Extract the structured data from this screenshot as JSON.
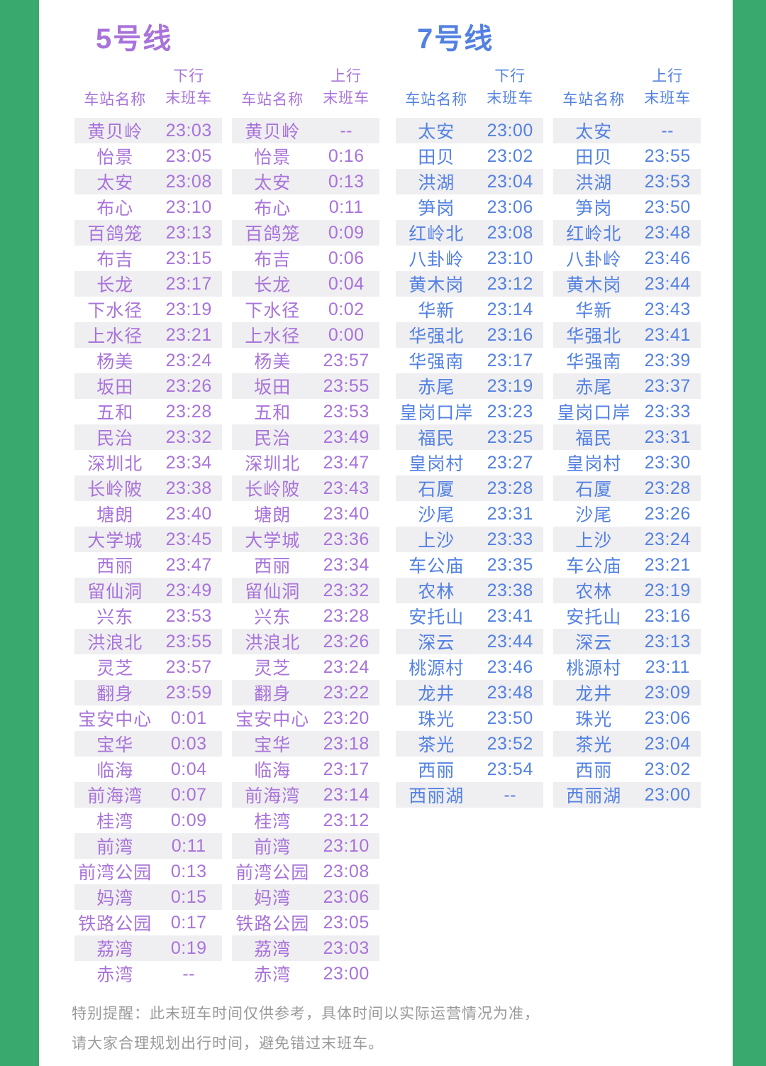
{
  "colors": {
    "border_green": "#3aa96d",
    "line5_accent": "#a873da",
    "line7_accent": "#5381e2",
    "notice_gray": "#9a9a9a",
    "stripe_gray": "#efeef1"
  },
  "lines": [
    {
      "title": "5号线",
      "color": "#a873da",
      "headers": {
        "station": "车站名称",
        "down": [
          "下行",
          "末班车"
        ],
        "up": [
          "上行",
          "末班车"
        ]
      },
      "stations": [
        "黄贝岭",
        "怡景",
        "太安",
        "布心",
        "百鸽笼",
        "布吉",
        "长龙",
        "下水径",
        "上水径",
        "杨美",
        "坂田",
        "五和",
        "民治",
        "深圳北",
        "长岭陂",
        "塘朗",
        "大学城",
        "西丽",
        "留仙洞",
        "兴东",
        "洪浪北",
        "灵芝",
        "翻身",
        "宝安中心",
        "宝华",
        "临海",
        "前海湾",
        "桂湾",
        "前湾",
        "前湾公园",
        "妈湾",
        "铁路公园",
        "荔湾",
        "赤湾"
      ],
      "down_times": [
        "23:03",
        "23:05",
        "23:08",
        "23:10",
        "23:13",
        "23:15",
        "23:17",
        "23:19",
        "23:21",
        "23:24",
        "23:26",
        "23:28",
        "23:32",
        "23:34",
        "23:38",
        "23:40",
        "23:45",
        "23:47",
        "23:49",
        "23:53",
        "23:55",
        "23:57",
        "23:59",
        "0:01",
        "0:03",
        "0:04",
        "0:07",
        "0:09",
        "0:11",
        "0:13",
        "0:15",
        "0:17",
        "0:19",
        "--"
      ],
      "up_times": [
        "--",
        "0:16",
        "0:13",
        "0:11",
        "0:09",
        "0:06",
        "0:04",
        "0:02",
        "0:00",
        "23:57",
        "23:55",
        "23:53",
        "23:49",
        "23:47",
        "23:43",
        "23:40",
        "23:36",
        "23:34",
        "23:32",
        "23:28",
        "23:26",
        "23:24",
        "23:22",
        "23:20",
        "23:18",
        "23:17",
        "23:14",
        "23:12",
        "23:10",
        "23:08",
        "23:06",
        "23:05",
        "23:03",
        "23:00"
      ]
    },
    {
      "title": "7号线",
      "color": "#5381e2",
      "headers": {
        "station": "车站名称",
        "down": [
          "下行",
          "末班车"
        ],
        "up": [
          "上行",
          "末班车"
        ]
      },
      "stations": [
        "太安",
        "田贝",
        "洪湖",
        "笋岗",
        "红岭北",
        "八卦岭",
        "黄木岗",
        "华新",
        "华强北",
        "华强南",
        "赤尾",
        "皇岗口岸",
        "福民",
        "皇岗村",
        "石厦",
        "沙尾",
        "上沙",
        "车公庙",
        "农林",
        "安托山",
        "深云",
        "桃源村",
        "龙井",
        "珠光",
        "茶光",
        "西丽",
        "西丽湖"
      ],
      "down_times": [
        "23:00",
        "23:02",
        "23:04",
        "23:06",
        "23:08",
        "23:10",
        "23:12",
        "23:14",
        "23:16",
        "23:17",
        "23:19",
        "23:23",
        "23:25",
        "23:27",
        "23:28",
        "23:31",
        "23:33",
        "23:35",
        "23:38",
        "23:41",
        "23:44",
        "23:46",
        "23:48",
        "23:50",
        "23:52",
        "23:54",
        "--"
      ],
      "up_times": [
        "--",
        "23:55",
        "23:53",
        "23:50",
        "23:48",
        "23:46",
        "23:44",
        "23:43",
        "23:41",
        "23:39",
        "23:37",
        "23:33",
        "23:31",
        "23:30",
        "23:28",
        "23:26",
        "23:24",
        "23:21",
        "23:19",
        "23:16",
        "23:13",
        "23:11",
        "23:09",
        "23:06",
        "23:04",
        "23:02",
        "23:00"
      ]
    }
  ],
  "notice": {
    "line1": "特别提醒：此末班车时间仅供参考，具体时间以实际运营情况为准，",
    "line2": "请大家合理规划出行时间，避免错过末班车。"
  }
}
